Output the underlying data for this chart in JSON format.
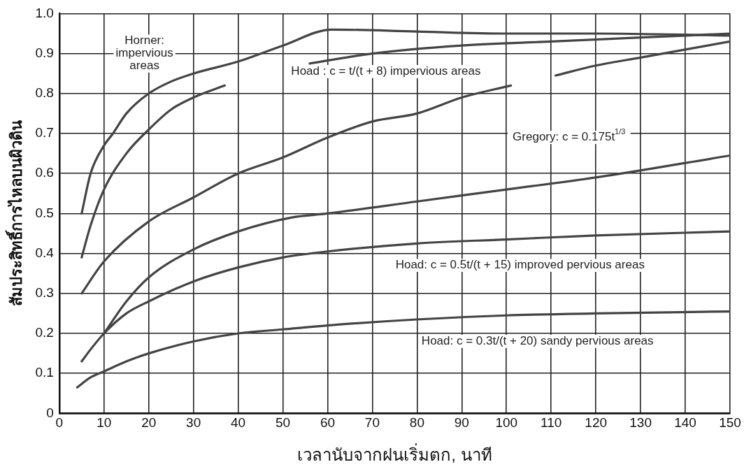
{
  "chart_data": {
    "type": "line",
    "xlabel": "เวลานับจากฝนเริ่มตก, นาที",
    "ylabel": "สัมประสิทธิ์การไหลบนผิวดิน",
    "xlim": [
      0,
      150
    ],
    "xticks": [
      0,
      10,
      20,
      30,
      40,
      50,
      60,
      70,
      80,
      90,
      100,
      110,
      120,
      130,
      140,
      150
    ],
    "ylim": [
      0,
      1
    ],
    "yticks": [
      0,
      0.1,
      0.2,
      0.3,
      0.4,
      0.5,
      0.6,
      0.7,
      0.8,
      0.9,
      {
        "value": 1,
        "label": "1.0"
      }
    ],
    "grid": true,
    "legend": false,
    "marker": "none",
    "line_style": "solid",
    "series": [
      {
        "color": "#444444",
        "x": [
          5,
          7,
          10,
          12,
          15,
          20,
          25,
          30,
          40,
          50,
          61,
          80,
          100,
          120,
          150
        ],
        "values": [
          0.5,
          0.6,
          0.67,
          0.7,
          0.75,
          0.8,
          0.83,
          0.85,
          0.88,
          0.92,
          0.96,
          0.955,
          0.95,
          0.95,
          0.945
        ]
      },
      {
        "color": "#444444",
        "x": [
          5,
          7,
          10,
          15,
          20,
          25,
          30,
          37,
          45,
          56,
          70,
          90,
          110,
          130,
          150
        ],
        "values": [
          0.39,
          0.47,
          0.56,
          0.65,
          0.71,
          0.76,
          0.79,
          0.82,
          null,
          0.875,
          0.9,
          0.92,
          0.93,
          0.94,
          0.95
        ]
      },
      {
        "color": "#444444",
        "x": [
          5,
          10,
          20,
          30,
          40,
          50,
          60,
          70,
          80,
          90,
          101,
          105,
          111,
          120,
          130,
          140,
          150
        ],
        "values": [
          0.3,
          0.38,
          0.48,
          0.54,
          0.6,
          0.64,
          0.69,
          0.73,
          0.75,
          0.79,
          0.82,
          null,
          0.845,
          0.87,
          0.89,
          0.91,
          0.93
        ]
      },
      {
        "color": "#444444",
        "x": [
          10,
          15,
          20,
          30,
          40,
          52,
          60,
          80,
          100,
          120,
          150
        ],
        "values": [
          0.2,
          0.28,
          0.34,
          0.41,
          0.455,
          0.49,
          0.5,
          0.53,
          0.56,
          0.59,
          0.645
        ]
      },
      {
        "color": "#444444",
        "x": [
          5,
          7,
          10,
          15,
          20,
          30,
          40,
          50,
          60,
          80,
          100,
          120,
          150
        ],
        "values": [
          0.13,
          0.16,
          0.2,
          0.25,
          0.28,
          0.33,
          0.365,
          0.39,
          0.405,
          0.425,
          0.435,
          0.445,
          0.455
        ]
      },
      {
        "color": "#444444",
        "x": [
          4,
          7,
          10,
          15,
          20,
          30,
          40,
          50,
          60,
          80,
          100,
          120,
          150
        ],
        "values": [
          0.065,
          0.09,
          0.105,
          0.13,
          0.15,
          0.18,
          0.2,
          0.21,
          0.22,
          0.235,
          0.245,
          0.25,
          0.255
        ]
      }
    ],
    "annotations": [
      "Horner:\nimpervious\nareas",
      "Hoad : c = t/(t + 8) impervious areas",
      "Gregory: c = 0.175t$^{1/3}$",
      "Hoad: c = 0.5t/(t + 15) improved pervious areas",
      "Hoad: c = 0.3t/(t + 20) sandy pervious areas"
    ]
  }
}
